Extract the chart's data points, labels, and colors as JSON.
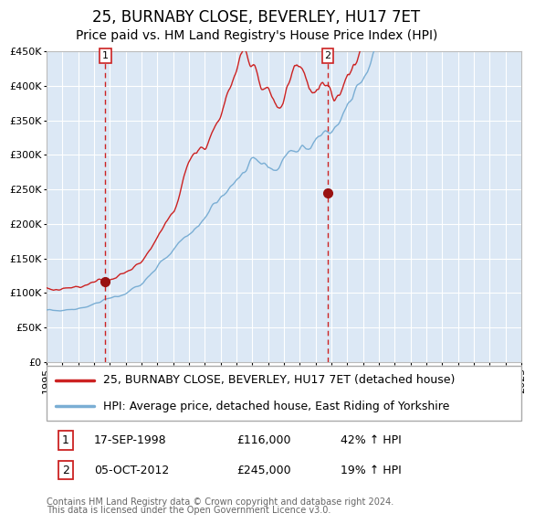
{
  "title": "25, BURNABY CLOSE, BEVERLEY, HU17 7ET",
  "subtitle": "Price paid vs. HM Land Registry's House Price Index (HPI)",
  "footer": "Contains HM Land Registry data © Crown copyright and database right 2024.\nThis data is licensed under the Open Government Licence v3.0.",
  "legend_line1": "25, BURNABY CLOSE, BEVERLEY, HU17 7ET (detached house)",
  "legend_line2": "HPI: Average price, detached house, East Riding of Yorkshire",
  "transaction1_date": "17-SEP-1998",
  "transaction1_price": "£116,000",
  "transaction1_hpi": "42% ↑ HPI",
  "transaction2_date": "05-OCT-2012",
  "transaction2_price": "£245,000",
  "transaction2_hpi": "19% ↑ HPI",
  "ylim": [
    0,
    450000
  ],
  "plot_bg": "#dce8f5",
  "grid_color": "#ffffff",
  "red_line_color": "#cc2222",
  "blue_line_color": "#7aaed4",
  "vline_color": "#cc2222",
  "dot_color": "#991111",
  "title_fontsize": 12,
  "subtitle_fontsize": 10,
  "tick_fontsize": 8,
  "legend_fontsize": 9,
  "table_fontsize": 9,
  "footer_fontsize": 7,
  "ylabel_values": [
    0,
    50000,
    100000,
    150000,
    200000,
    250000,
    300000,
    350000,
    400000,
    450000
  ],
  "ylabel_labels": [
    "£0",
    "£50K",
    "£100K",
    "£150K",
    "£200K",
    "£250K",
    "£300K",
    "£350K",
    "£400K",
    "£450K"
  ],
  "transaction1_x": 1998.71,
  "transaction1_y": 116000,
  "transaction2_x": 2012.76,
  "transaction2_y": 245000,
  "vline1_x": 1998.71,
  "vline2_x": 2012.76,
  "xlim_start": 1995,
  "xlim_end": 2025
}
